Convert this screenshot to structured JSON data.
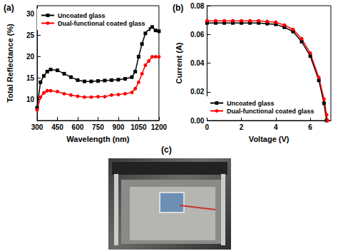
{
  "chart_data": [
    {
      "type": "line",
      "title": "(a)",
      "x_label": "Wavelength (nm)",
      "y_label": "Total Reflectance (%)",
      "x": [
        300,
        325,
        350,
        375,
        400,
        450,
        500,
        550,
        600,
        650,
        700,
        750,
        800,
        850,
        900,
        950,
        1000,
        1025,
        1050,
        1075,
        1100,
        1125,
        1150,
        1175,
        1200
      ],
      "series": [
        {
          "name": "Uncoated glass",
          "color": "#000000",
          "marker": "square",
          "values": [
            8,
            14,
            15.5,
            16.5,
            17,
            16.8,
            16,
            15.2,
            14.5,
            14.2,
            14.2,
            14.3,
            14.4,
            14.5,
            14.6,
            14.8,
            15.2,
            16.5,
            20,
            23,
            25.5,
            26.5,
            27,
            26.2,
            26
          ]
        },
        {
          "name": "Dual-functional coated glass",
          "color": "#ff0000",
          "marker": "circle",
          "values": [
            7.5,
            10.5,
            11.5,
            12,
            12,
            11.8,
            11.3,
            11,
            10.7,
            10.5,
            10.5,
            10.6,
            10.6,
            11,
            11.1,
            11.3,
            11.6,
            12.5,
            14,
            16,
            18,
            19,
            20,
            20,
            20
          ]
        }
      ],
      "xlim": [
        300,
        1200
      ],
      "xticks": [
        300,
        450,
        600,
        750,
        900,
        1050,
        1200
      ],
      "ylim": [
        5,
        32
      ],
      "yticks": [
        10,
        15,
        20,
        25,
        30
      ],
      "grid": false,
      "legend": "top-left"
    },
    {
      "type": "line",
      "title": "(b)",
      "x_label": "Voltage (V)",
      "y_label": "Current (A)",
      "x": [
        0,
        0.5,
        1,
        1.5,
        2,
        2.5,
        3,
        3.5,
        4,
        4.5,
        5,
        5.5,
        6,
        6.5,
        6.8,
        6.95,
        7.0
      ],
      "series": [
        {
          "name": "Uncoated glass",
          "color": "#000000",
          "marker": "square",
          "values": [
            0.068,
            0.068,
            0.068,
            0.068,
            0.068,
            0.068,
            0.068,
            0.0675,
            0.067,
            0.065,
            0.062,
            0.055,
            0.045,
            0.028,
            0.012,
            0,
            null
          ]
        },
        {
          "name": "Dual-functional coated glass",
          "color": "#ff0000",
          "marker": "circle",
          "values": [
            0.0695,
            0.0695,
            0.0695,
            0.0695,
            0.0695,
            0.0695,
            0.0695,
            0.069,
            0.0685,
            0.0665,
            0.0635,
            0.057,
            0.047,
            0.03,
            0.015,
            0.004,
            0
          ]
        }
      ],
      "xlim": [
        0,
        7.2
      ],
      "xticks": [
        0,
        2,
        4,
        6
      ],
      "ylim": [
        0,
        0.08
      ],
      "yticks": [
        {
          "value": 0,
          "label": "0.00"
        },
        {
          "value": 0.02,
          "label": "0.02"
        },
        {
          "value": 0.04,
          "label": "0.04"
        },
        {
          "value": 0.06,
          "label": "0.06"
        },
        {
          "value": 0.08,
          "label": "0.08"
        }
      ],
      "grid": false,
      "legend": "bottom-left"
    }
  ],
  "photo": {
    "label": "(c)"
  }
}
